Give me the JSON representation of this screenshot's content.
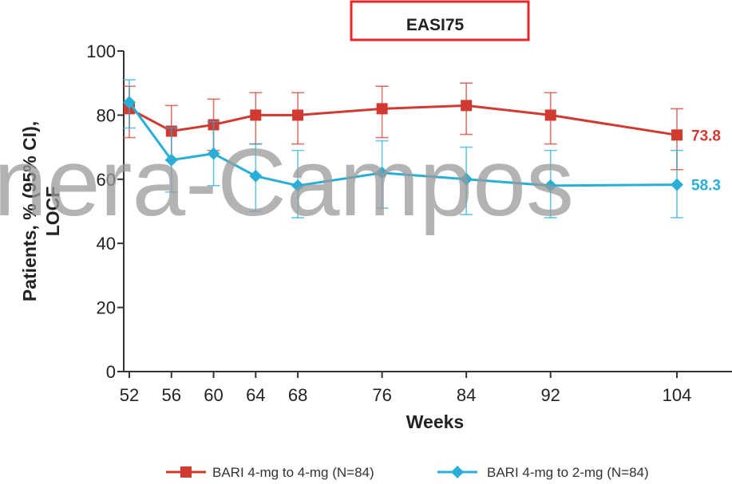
{
  "chart_data": {
    "type": "line",
    "title": "EASI75",
    "xlabel": "Weeks",
    "ylabel_lines": [
      "Patients, % (95% CI),",
      "LOCF"
    ],
    "xlim": [
      52,
      104
    ],
    "ylim": [
      0,
      100
    ],
    "xticks": [
      52,
      56,
      60,
      64,
      68,
      76,
      84,
      92,
      104
    ],
    "yticks": [
      0,
      20,
      40,
      60,
      80,
      100
    ],
    "grid": false,
    "legend_position": "bottom",
    "series": [
      {
        "name": "BARI 4-mg to 4-mg (N=84)",
        "color": "#d03a30",
        "marker": "square",
        "end_label": "73.8",
        "points": [
          {
            "x": 52,
            "y": 82,
            "lo": 73,
            "hi": 89
          },
          {
            "x": 56,
            "y": 75,
            "lo": 66,
            "hi": 83
          },
          {
            "x": 60,
            "y": 77,
            "lo": 69,
            "hi": 85
          },
          {
            "x": 64,
            "y": 80,
            "lo": 71,
            "hi": 87
          },
          {
            "x": 68,
            "y": 80,
            "lo": 71,
            "hi": 87
          },
          {
            "x": 76,
            "y": 82,
            "lo": 73,
            "hi": 89
          },
          {
            "x": 84,
            "y": 83,
            "lo": 74,
            "hi": 90
          },
          {
            "x": 92,
            "y": 80,
            "lo": 71,
            "hi": 87
          },
          {
            "x": 104,
            "y": 73.8,
            "lo": 63,
            "hi": 82
          }
        ]
      },
      {
        "name": "BARI 4-mg to 2-mg (N=84)",
        "color": "#2aaed6",
        "marker": "diamond",
        "end_label": "58.3",
        "points": [
          {
            "x": 52,
            "y": 84,
            "lo": 76,
            "hi": 91
          },
          {
            "x": 56,
            "y": 66,
            "lo": 56,
            "hi": 76
          },
          {
            "x": 60,
            "y": 68,
            "lo": 58,
            "hi": 78
          },
          {
            "x": 64,
            "y": 61,
            "lo": 50,
            "hi": 71
          },
          {
            "x": 68,
            "y": 58,
            "lo": 48,
            "hi": 69
          },
          {
            "x": 76,
            "y": 62,
            "lo": 51,
            "hi": 72
          },
          {
            "x": 84,
            "y": 60,
            "lo": 49,
            "hi": 70
          },
          {
            "x": 92,
            "y": 58,
            "lo": 48,
            "hi": 69
          },
          {
            "x": 104,
            "y": 58.3,
            "lo": 48,
            "hi": 69
          }
        ]
      }
    ],
    "title_box_color": "#e8262a"
  },
  "watermark": "nera-Campos"
}
